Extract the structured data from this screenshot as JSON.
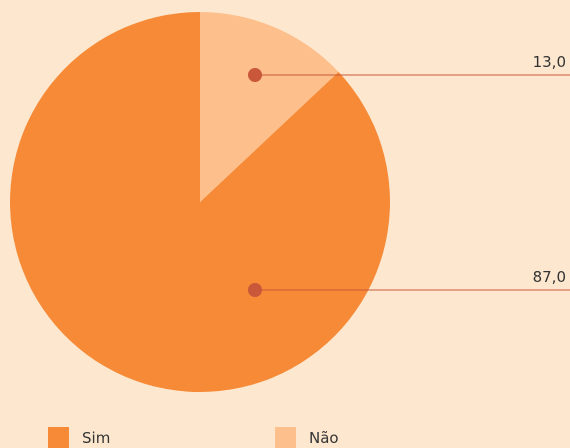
{
  "chart_data": {
    "type": "pie",
    "categories": [
      "Sim",
      "Não"
    ],
    "values": [
      87,
      13
    ],
    "value_labels": [
      "87,0",
      "13,0"
    ],
    "colors": [
      "#f68a37",
      "#fdbf8c"
    ]
  }
}
